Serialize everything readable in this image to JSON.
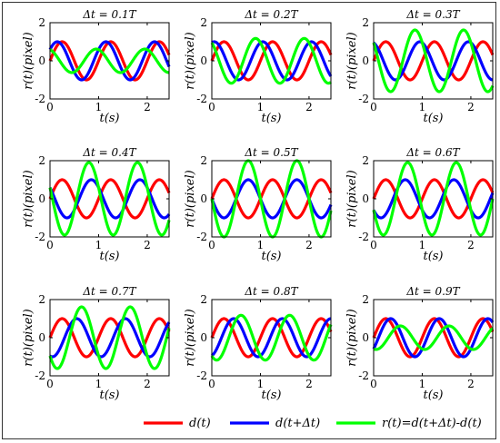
{
  "figure": {
    "legend": [
      {
        "label": "d(t)",
        "color": "#ff0000"
      },
      {
        "label": "d(t+Δt)",
        "color": "#0000ff"
      },
      {
        "label": "r(t)=d(t+Δt)-d(t)",
        "color": "#00ff00"
      }
    ]
  },
  "chart_data": [
    {
      "type": "line",
      "title": "Δt = 0.1T",
      "xlabel": "t(s)",
      "ylabel": "r(t)(pixel)",
      "xlim": [
        0,
        2.45
      ],
      "ylim": [
        -2,
        2
      ],
      "xticks": [
        0,
        1,
        2
      ],
      "yticks": [
        -2,
        0,
        2
      ],
      "period": 1,
      "amplitude": 1,
      "dt_fraction": 0.1,
      "series": [
        {
          "name": "d(t)",
          "expr": "sin(2πt)"
        },
        {
          "name": "d(t+Δt)",
          "expr": "sin(2π(t+Δt))"
        },
        {
          "name": "r(t)=d(t+Δt)-d(t)",
          "expr": "d(t+Δt)-d(t)"
        }
      ]
    },
    {
      "type": "line",
      "title": "Δt = 0.2T",
      "xlabel": "t(s)",
      "ylabel": "r(t)(pixel)",
      "xlim": [
        0,
        2.45
      ],
      "ylim": [
        -2,
        2
      ],
      "xticks": [
        0,
        1,
        2
      ],
      "yticks": [
        -2,
        0,
        2
      ],
      "period": 1,
      "amplitude": 1,
      "dt_fraction": 0.2,
      "series": [
        {
          "name": "d(t)",
          "expr": "sin(2πt)"
        },
        {
          "name": "d(t+Δt)",
          "expr": "sin(2π(t+Δt))"
        },
        {
          "name": "r(t)=d(t+Δt)-d(t)",
          "expr": "d(t+Δt)-d(t)"
        }
      ]
    },
    {
      "type": "line",
      "title": "Δt = 0.3T",
      "xlabel": "t(s)",
      "ylabel": "r(t)(pixel)",
      "xlim": [
        0,
        2.45
      ],
      "ylim": [
        -2,
        2
      ],
      "xticks": [
        0,
        1,
        2
      ],
      "yticks": [
        -2,
        0,
        2
      ],
      "period": 1,
      "amplitude": 1,
      "dt_fraction": 0.3,
      "series": [
        {
          "name": "d(t)",
          "expr": "sin(2πt)"
        },
        {
          "name": "d(t+Δt)",
          "expr": "sin(2π(t+Δt))"
        },
        {
          "name": "r(t)=d(t+Δt)-d(t)",
          "expr": "d(t+Δt)-d(t)"
        }
      ]
    },
    {
      "type": "line",
      "title": "Δt = 0.4T",
      "xlabel": "t(s)",
      "ylabel": "r(t)(pixel)",
      "xlim": [
        0,
        2.45
      ],
      "ylim": [
        -2,
        2
      ],
      "xticks": [
        0,
        1,
        2
      ],
      "yticks": [
        -2,
        0,
        2
      ],
      "period": 1,
      "amplitude": 1,
      "dt_fraction": 0.4,
      "series": [
        {
          "name": "d(t)",
          "expr": "sin(2πt)"
        },
        {
          "name": "d(t+Δt)",
          "expr": "sin(2π(t+Δt))"
        },
        {
          "name": "r(t)=d(t+Δt)-d(t)",
          "expr": "d(t+Δt)-d(t)"
        }
      ]
    },
    {
      "type": "line",
      "title": "Δt = 0.5T",
      "xlabel": "t(s)",
      "ylabel": "r(t)(pixel)",
      "xlim": [
        0,
        2.45
      ],
      "ylim": [
        -2,
        2
      ],
      "xticks": [
        0,
        1,
        2
      ],
      "yticks": [
        -2,
        0,
        2
      ],
      "period": 1,
      "amplitude": 1,
      "dt_fraction": 0.5,
      "series": [
        {
          "name": "d(t)",
          "expr": "sin(2πt)"
        },
        {
          "name": "d(t+Δt)",
          "expr": "sin(2π(t+Δt))"
        },
        {
          "name": "r(t)=d(t+Δt)-d(t)",
          "expr": "d(t+Δt)-d(t)"
        }
      ]
    },
    {
      "type": "line",
      "title": "Δt = 0.6T",
      "xlabel": "t(s)",
      "ylabel": "r(t)(pixel)",
      "xlim": [
        0,
        2.45
      ],
      "ylim": [
        -2,
        2
      ],
      "xticks": [
        0,
        1,
        2
      ],
      "yticks": [
        -2,
        0,
        2
      ],
      "period": 1,
      "amplitude": 1,
      "dt_fraction": 0.6,
      "series": [
        {
          "name": "d(t)",
          "expr": "sin(2πt)"
        },
        {
          "name": "d(t+Δt)",
          "expr": "sin(2π(t+Δt))"
        },
        {
          "name": "r(t)=d(t+Δt)-d(t)",
          "expr": "d(t+Δt)-d(t)"
        }
      ]
    },
    {
      "type": "line",
      "title": "Δt = 0.7T",
      "xlabel": "t(s)",
      "ylabel": "r(t)(pixel)",
      "xlim": [
        0,
        2.45
      ],
      "ylim": [
        -2,
        2
      ],
      "xticks": [
        0,
        1,
        2
      ],
      "yticks": [
        -2,
        0,
        2
      ],
      "period": 1,
      "amplitude": 1,
      "dt_fraction": 0.7,
      "series": [
        {
          "name": "d(t)",
          "expr": "sin(2πt)"
        },
        {
          "name": "d(t+Δt)",
          "expr": "sin(2π(t+Δt))"
        },
        {
          "name": "r(t)=d(t+Δt)-d(t)",
          "expr": "d(t+Δt)-d(t)"
        }
      ]
    },
    {
      "type": "line",
      "title": "Δt = 0.8T",
      "xlabel": "t(s)",
      "ylabel": "r(t)(pixel)",
      "xlim": [
        0,
        2.45
      ],
      "ylim": [
        -2,
        2
      ],
      "xticks": [
        0,
        1,
        2
      ],
      "yticks": [
        -2,
        0,
        2
      ],
      "period": 1,
      "amplitude": 1,
      "dt_fraction": 0.8,
      "series": [
        {
          "name": "d(t)",
          "expr": "sin(2πt)"
        },
        {
          "name": "d(t+Δt)",
          "expr": "sin(2π(t+Δt))"
        },
        {
          "name": "r(t)=d(t+Δt)-d(t)",
          "expr": "d(t+Δt)-d(t)"
        }
      ]
    },
    {
      "type": "line",
      "title": "Δt = 0.9T",
      "xlabel": "t(s)",
      "ylabel": "r(t)(pixel)",
      "xlim": [
        0,
        2.45
      ],
      "ylim": [
        -2,
        2
      ],
      "xticks": [
        0,
        1,
        2
      ],
      "yticks": [
        -2,
        0,
        2
      ],
      "period": 1,
      "amplitude": 1,
      "dt_fraction": 0.9,
      "series": [
        {
          "name": "d(t)",
          "expr": "sin(2πt)"
        },
        {
          "name": "d(t+Δt)",
          "expr": "sin(2π(t+Δt))"
        },
        {
          "name": "r(t)=d(t+Δt)-d(t)",
          "expr": "d(t+Δt)-d(t)"
        }
      ]
    }
  ]
}
